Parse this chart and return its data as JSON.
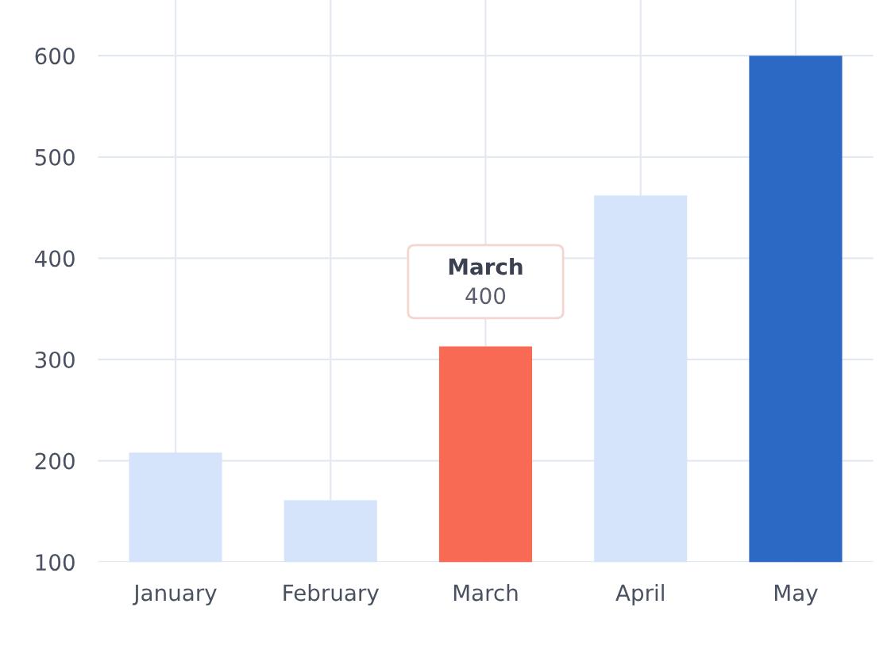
{
  "chart_data": {
    "type": "bar",
    "categories": [
      "January",
      "February",
      "March",
      "April",
      "May"
    ],
    "values": [
      208,
      161,
      313,
      462,
      600
    ],
    "colors": [
      "#d6e4fb",
      "#d6e4fb",
      "#f96a55",
      "#d6e4fb",
      "#2c69c5"
    ],
    "ylim": [
      100,
      655
    ],
    "yticks": [
      100,
      200,
      300,
      400,
      500,
      600
    ],
    "grid": true,
    "annotations": [
      "March",
      "400"
    ]
  }
}
